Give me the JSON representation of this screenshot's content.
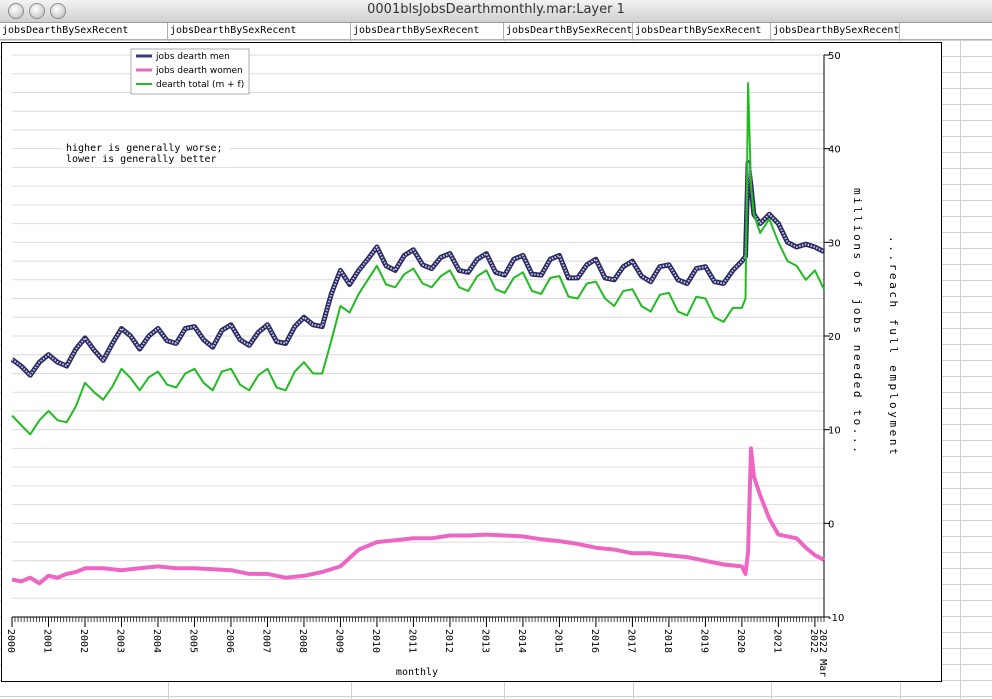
{
  "window": {
    "title": "0001blsJobsDearthmonthly.mar:Layer 1"
  },
  "columns": [
    "jobsDearthBySexRecent",
    "jobsDearthBySexRecent",
    "jobsDearthBySexRecent",
    "jobsDearthBySexRecent",
    "jobsDearthBySexRecent",
    "jobsDearthBySexRecent"
  ],
  "chart_data": {
    "type": "line",
    "xlabel": "monthly",
    "ylabel": "millions of jobs needed to...",
    "ylabel2": "...reach full employment",
    "ylim": [
      -10,
      50
    ],
    "yticks": [
      -10,
      0,
      10,
      20,
      30,
      40,
      50
    ],
    "xlim": [
      2000.0,
      2022.25
    ],
    "xticks": [
      "2000",
      "2001",
      "2002",
      "2003",
      "2004",
      "2005",
      "2006",
      "2007",
      "2008",
      "2009",
      "2010",
      "2011",
      "2012",
      "2013",
      "2014",
      "2015",
      "2016",
      "2017",
      "2018",
      "2019",
      "2020",
      "2021",
      "2022"
    ],
    "xtick_last": "2022 Mar",
    "annotation": [
      "higher is generally worse;",
      "lower is generally better"
    ],
    "legend_position": "top-left",
    "grid": true,
    "series": [
      {
        "name": "jobs dearth men",
        "color": "#5a5aa0",
        "x": [
          2000.0,
          2000.25,
          2000.5,
          2000.75,
          2001.0,
          2001.25,
          2001.5,
          2001.75,
          2002.0,
          2002.25,
          2002.5,
          2002.75,
          2003.0,
          2003.25,
          2003.5,
          2003.75,
          2004.0,
          2004.25,
          2004.5,
          2004.75,
          2005.0,
          2005.25,
          2005.5,
          2005.75,
          2006.0,
          2006.25,
          2006.5,
          2006.75,
          2007.0,
          2007.25,
          2007.5,
          2007.75,
          2008.0,
          2008.25,
          2008.5,
          2008.75,
          2009.0,
          2009.25,
          2009.5,
          2009.75,
          2010.0,
          2010.25,
          2010.5,
          2010.75,
          2011.0,
          2011.25,
          2011.5,
          2011.75,
          2012.0,
          2012.25,
          2012.5,
          2012.75,
          2013.0,
          2013.25,
          2013.5,
          2013.75,
          2014.0,
          2014.25,
          2014.5,
          2014.75,
          2015.0,
          2015.25,
          2015.5,
          2015.75,
          2016.0,
          2016.25,
          2016.5,
          2016.75,
          2017.0,
          2017.25,
          2017.5,
          2017.75,
          2018.0,
          2018.25,
          2018.5,
          2018.75,
          2019.0,
          2019.25,
          2019.5,
          2019.75,
          2020.0,
          2020.1,
          2020.17,
          2020.25,
          2020.33,
          2020.5,
          2020.75,
          2021.0,
          2021.25,
          2021.5,
          2021.75,
          2022.0,
          2022.25
        ],
        "values": [
          17.5,
          16.8,
          15.8,
          17.2,
          18.0,
          17.2,
          16.8,
          18.6,
          19.8,
          18.5,
          17.4,
          19.2,
          20.8,
          20.0,
          18.6,
          20.0,
          20.8,
          19.5,
          19.2,
          20.8,
          21.0,
          19.6,
          18.8,
          20.6,
          21.2,
          19.6,
          19.0,
          20.4,
          21.2,
          19.4,
          19.2,
          21.0,
          22.0,
          21.2,
          21.0,
          24.5,
          27.0,
          25.5,
          27.0,
          28.2,
          29.5,
          27.5,
          27.0,
          28.6,
          29.2,
          27.6,
          27.2,
          28.4,
          28.8,
          27.0,
          26.8,
          28.2,
          28.8,
          26.8,
          26.5,
          28.2,
          28.6,
          26.6,
          26.5,
          28.2,
          28.6,
          26.2,
          26.2,
          27.6,
          28.2,
          26.2,
          26.0,
          27.4,
          28.0,
          26.4,
          25.8,
          27.4,
          27.6,
          26.0,
          25.6,
          27.2,
          27.4,
          25.8,
          25.6,
          27.0,
          28.0,
          28.5,
          38.5,
          36.0,
          33.0,
          32.0,
          33.0,
          32.0,
          30.0,
          29.5,
          29.8,
          29.5,
          29.0
        ]
      },
      {
        "name": "jobs dearth women",
        "color": "#ee66c4",
        "x": [
          2000.0,
          2000.25,
          2000.5,
          2000.75,
          2001.0,
          2001.25,
          2001.5,
          2001.75,
          2002.0,
          2002.5,
          2003.0,
          2003.5,
          2004.0,
          2004.5,
          2005.0,
          2005.5,
          2006.0,
          2006.5,
          2007.0,
          2007.5,
          2008.0,
          2008.5,
          2009.0,
          2009.5,
          2010.0,
          2010.5,
          2011.0,
          2011.5,
          2012.0,
          2012.5,
          2013.0,
          2013.5,
          2014.0,
          2014.5,
          2015.0,
          2015.5,
          2016.0,
          2016.5,
          2017.0,
          2017.5,
          2018.0,
          2018.5,
          2019.0,
          2019.5,
          2020.0,
          2020.1,
          2020.17,
          2020.25,
          2020.33,
          2020.5,
          2020.75,
          2021.0,
          2021.25,
          2021.5,
          2021.75,
          2022.0,
          2022.25
        ],
        "values": [
          -6.0,
          -6.2,
          -5.8,
          -6.4,
          -5.6,
          -5.8,
          -5.4,
          -5.2,
          -4.8,
          -4.8,
          -5.0,
          -4.8,
          -4.6,
          -4.8,
          -4.8,
          -4.9,
          -5.0,
          -5.4,
          -5.4,
          -5.8,
          -5.6,
          -5.2,
          -4.6,
          -2.8,
          -2.0,
          -1.8,
          -1.6,
          -1.6,
          -1.3,
          -1.3,
          -1.2,
          -1.3,
          -1.4,
          -1.7,
          -1.9,
          -2.2,
          -2.6,
          -2.8,
          -3.2,
          -3.2,
          -3.4,
          -3.6,
          -4.0,
          -4.4,
          -4.6,
          -5.4,
          -3.0,
          8.0,
          5.0,
          3.0,
          0.5,
          -1.2,
          -1.4,
          -1.6,
          -2.6,
          -3.4,
          -3.9
        ]
      },
      {
        "name": "dearth total (m + f)",
        "color": "#22bb22",
        "x": [
          2000.0,
          2000.25,
          2000.5,
          2000.75,
          2001.0,
          2001.25,
          2001.5,
          2001.75,
          2002.0,
          2002.25,
          2002.5,
          2002.75,
          2003.0,
          2003.25,
          2003.5,
          2003.75,
          2004.0,
          2004.25,
          2004.5,
          2004.75,
          2005.0,
          2005.25,
          2005.5,
          2005.75,
          2006.0,
          2006.25,
          2006.5,
          2006.75,
          2007.0,
          2007.25,
          2007.5,
          2007.75,
          2008.0,
          2008.25,
          2008.5,
          2008.75,
          2009.0,
          2009.25,
          2009.5,
          2009.75,
          2010.0,
          2010.25,
          2010.5,
          2010.75,
          2011.0,
          2011.25,
          2011.5,
          2011.75,
          2012.0,
          2012.25,
          2012.5,
          2012.75,
          2013.0,
          2013.25,
          2013.5,
          2013.75,
          2014.0,
          2014.25,
          2014.5,
          2014.75,
          2015.0,
          2015.25,
          2015.5,
          2015.75,
          2016.0,
          2016.25,
          2016.5,
          2016.75,
          2017.0,
          2017.25,
          2017.5,
          2017.75,
          2018.0,
          2018.25,
          2018.5,
          2018.75,
          2019.0,
          2019.25,
          2019.5,
          2019.75,
          2020.0,
          2020.1,
          2020.17,
          2020.25,
          2020.33,
          2020.5,
          2020.75,
          2021.0,
          2021.25,
          2021.5,
          2021.75,
          2022.0,
          2022.25
        ],
        "values": [
          11.5,
          10.5,
          9.5,
          11.0,
          12.0,
          11.0,
          10.8,
          12.5,
          15.0,
          14.0,
          13.2,
          14.6,
          16.5,
          15.5,
          14.2,
          15.6,
          16.2,
          14.8,
          14.5,
          16.0,
          16.5,
          15.0,
          14.2,
          16.2,
          16.5,
          14.8,
          14.2,
          15.8,
          16.5,
          14.5,
          14.2,
          16.2,
          17.2,
          16.0,
          16.0,
          19.5,
          23.2,
          22.5,
          24.5,
          26.0,
          27.5,
          25.5,
          25.2,
          26.6,
          27.2,
          25.6,
          25.2,
          26.4,
          27.0,
          25.2,
          24.8,
          26.4,
          27.0,
          25.0,
          24.6,
          26.2,
          26.8,
          24.8,
          24.5,
          26.2,
          26.4,
          24.2,
          24.0,
          25.6,
          25.8,
          24.0,
          23.2,
          24.8,
          25.0,
          23.2,
          22.6,
          24.4,
          24.6,
          22.6,
          22.2,
          24.2,
          24.0,
          22.0,
          21.5,
          23.0,
          23.0,
          24.0,
          47.0,
          36.0,
          33.0,
          31.0,
          32.5,
          30.0,
          28.0,
          27.5,
          26.0,
          27.0,
          25.0
        ]
      }
    ]
  }
}
